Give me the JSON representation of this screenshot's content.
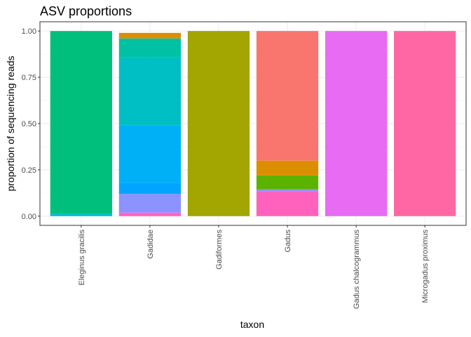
{
  "chart_data": {
    "type": "bar",
    "stacked": true,
    "title": "ASV proportions",
    "xlabel": "taxon",
    "ylabel": "proportion of sequencing reads",
    "ylim": [
      0,
      1
    ],
    "yticks": [
      "0.00",
      "0.25",
      "0.50",
      "0.75",
      "1.00"
    ],
    "grid": true,
    "legend": "none",
    "categories": [
      "Eleginus gracilis",
      "Gadidae",
      "Gadiformes",
      "Gadus",
      "Gadus chalcogrammus",
      "Microgadus proximus"
    ],
    "stacks": [
      [
        {
          "value": 0.012,
          "color": "#00BCD8"
        },
        {
          "value": 0.988,
          "color": "#00BF7D"
        }
      ],
      [
        {
          "value": 0.015,
          "color": "#FF62BC"
        },
        {
          "value": 0.005,
          "color": "#E76BF3"
        },
        {
          "value": 0.1,
          "color": "#8B93FF"
        },
        {
          "value": 0.06,
          "color": "#00A5FF"
        },
        {
          "value": 0.31,
          "color": "#00B0F6"
        },
        {
          "value": 0.37,
          "color": "#00BFC4"
        },
        {
          "value": 0.1,
          "color": "#00C1A3"
        },
        {
          "value": 0.03,
          "color": "#DE8C00"
        }
      ],
      [
        {
          "value": 1.0,
          "color": "#A3A500"
        }
      ],
      [
        {
          "value": 0.135,
          "color": "#FF62BC"
        },
        {
          "value": 0.01,
          "color": "#9590FF"
        },
        {
          "value": 0.075,
          "color": "#5BB300"
        },
        {
          "value": 0.08,
          "color": "#DB8E00"
        },
        {
          "value": 0.7,
          "color": "#F8766D"
        }
      ],
      [
        {
          "value": 1.0,
          "color": "#E76BF3"
        }
      ],
      [
        {
          "value": 1.0,
          "color": "#FF67A4"
        }
      ]
    ]
  }
}
